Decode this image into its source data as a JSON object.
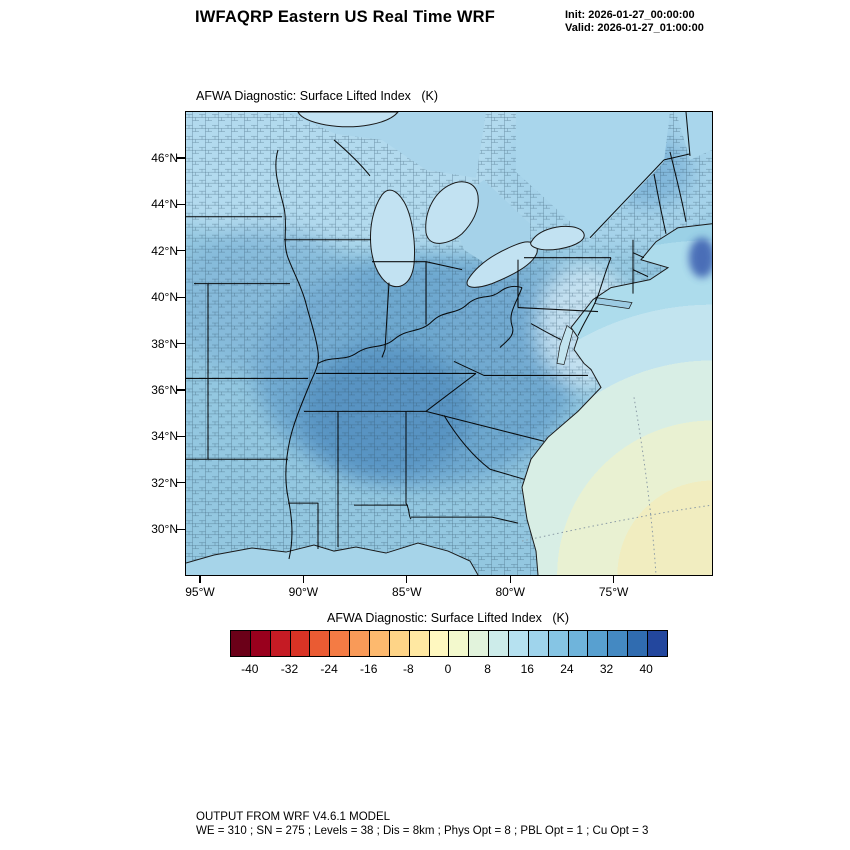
{
  "header": {
    "title": "IWFAQRP Eastern US Real Time WRF",
    "init_line": "Init: 2026-01-27_00:00:00",
    "valid_line": "Valid: 2026-01-27_01:00:00"
  },
  "map": {
    "label": "AFWA Diagnostic: Surface Lifted Index   (K)",
    "lat_ticks": [
      "46°N",
      "44°N",
      "42°N",
      "40°N",
      "38°N",
      "36°N",
      "34°N",
      "32°N",
      "30°N"
    ],
    "lon_ticks": [
      "95°W",
      "90°W",
      "85°W",
      "80°W",
      "75°W"
    ]
  },
  "colorbar": {
    "label": "AFWA Diagnostic: Surface Lifted Index   (K)",
    "tick_labels": [
      "-40",
      "-32",
      "-24",
      "-16",
      "-8",
      "0",
      "8",
      "16",
      "24",
      "32",
      "40"
    ],
    "colors": [
      "#6b0018",
      "#99001d",
      "#c51b24",
      "#d93325",
      "#ea5b33",
      "#f47b44",
      "#f99a58",
      "#fdb96e",
      "#fed487",
      "#ffe8a2",
      "#fff8c0",
      "#f3f9cd",
      "#e2f3dc",
      "#cdecea",
      "#b6e1f0",
      "#9fd4ec",
      "#86c5e4",
      "#6fb4db",
      "#58a0d0",
      "#4489c2",
      "#306cb0",
      "#23479e"
    ]
  },
  "footer": {
    "line1": "OUTPUT FROM WRF V4.6.1 MODEL",
    "line2": "WE = 310 ; SN = 275 ; Levels = 38 ; Dis = 8km ; Phys Opt = 8 ; PBL Opt = 1 ; Cu Opt = 3"
  },
  "chart_data": {
    "type": "heatmap",
    "title": "AFWA Diagnostic: Surface Lifted Index (K)",
    "model": "WRF V4.6.1",
    "init": "2026-01-27_00:00:00",
    "valid": "2026-01-27_01:00:00",
    "x": {
      "label": "Longitude",
      "ticks": [
        "95°W",
        "90°W",
        "85°W",
        "80°W",
        "75°W"
      ]
    },
    "y": {
      "label": "Latitude",
      "ticks": [
        "46°N",
        "44°N",
        "42°N",
        "40°N",
        "38°N",
        "36°N",
        "34°N",
        "32°N",
        "30°N"
      ]
    },
    "colorbar_levels": [
      -40,
      -32,
      -24,
      -16,
      -8,
      0,
      8,
      16,
      24,
      32,
      40
    ],
    "colorbar_cell_step": 4,
    "colorbar_range": [
      -44,
      44
    ],
    "legend_position": "bottom",
    "region": "Eastern United States with county and state boundaries, Great Lakes, Atlantic and Gulf coasts",
    "description": "Filled contours of surface lifted index: mostly 12-28 K (light-to-medium blues) over land with locally higher 28-36 K (darker blue) over the Ohio/Tennessee valley and near Nova Scotia, decreasing smoothly over the southwest Atlantic to about 0-8 K (pale yellow-green bands) in the far southeast corner"
  }
}
